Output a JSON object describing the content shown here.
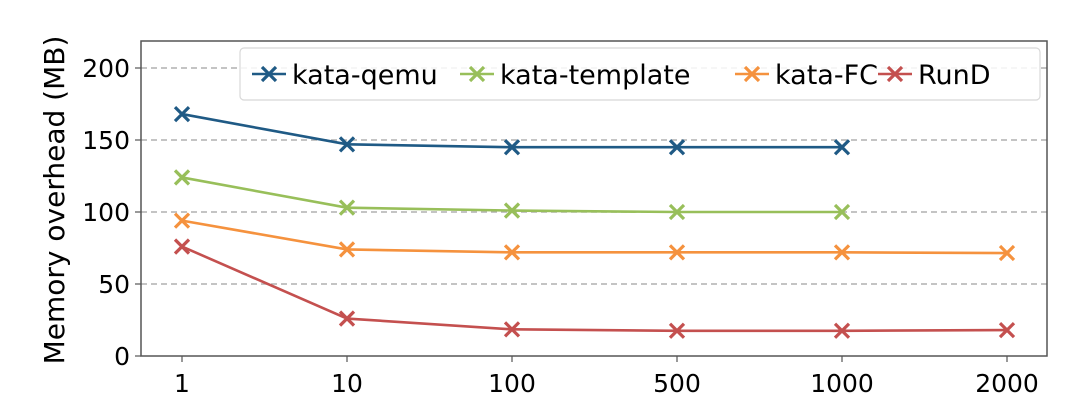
{
  "chart_data": {
    "type": "line",
    "title": "",
    "xlabel": "",
    "ylabel": "Memory overhead (MB)",
    "categories": [
      "1",
      "10",
      "100",
      "500",
      "1000",
      "2000"
    ],
    "ylim": [
      0,
      220
    ],
    "yticks": [
      0,
      50,
      100,
      150,
      200
    ],
    "grid": {
      "y": true,
      "style": "dashed"
    },
    "legend_position": "upper right (horizontal, inside plot)",
    "series": [
      {
        "name": "kata-qemu",
        "color": "#1f5a85",
        "marker": "x",
        "values": [
          168,
          147,
          145,
          145,
          145,
          null
        ]
      },
      {
        "name": "kata-template",
        "color": "#98bf5a",
        "marker": "x",
        "values": [
          124,
          103,
          101,
          100,
          100,
          null
        ]
      },
      {
        "name": "kata-FC",
        "color": "#f5923e",
        "marker": "x",
        "values": [
          94,
          74,
          72,
          72,
          72,
          71.5
        ]
      },
      {
        "name": "RunD",
        "color": "#c4504f",
        "marker": "x",
        "values": [
          76,
          26,
          18.5,
          17.5,
          17.5,
          18
        ]
      }
    ]
  }
}
